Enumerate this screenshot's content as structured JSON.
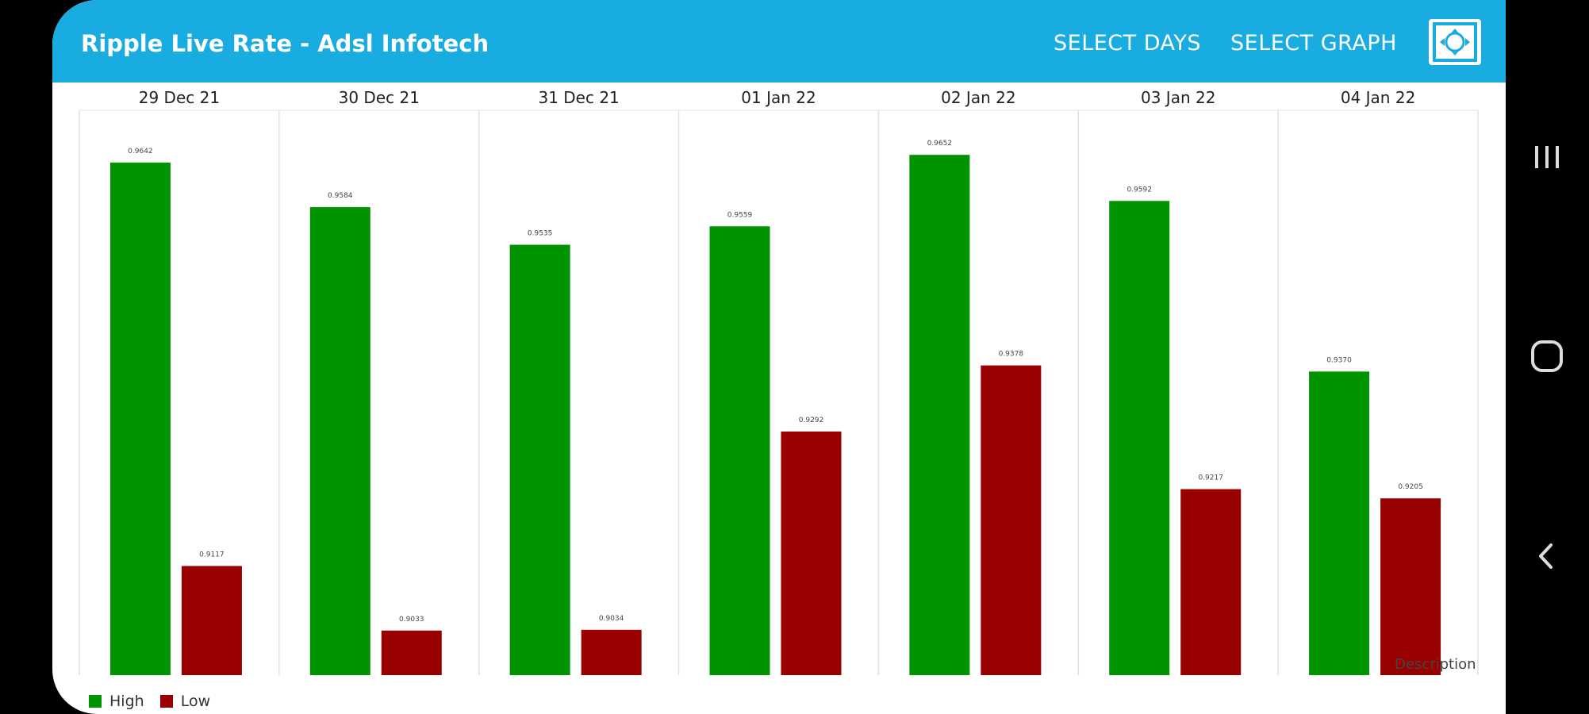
{
  "appbar": {
    "title": "Ripple Live Rate - Adsl Infotech",
    "select_days_label": "SELECT DAYS",
    "select_graph_label": "SELECT GRAPH",
    "fullscreen_icon": "fullscreen-icon",
    "background_color": "#19ace0"
  },
  "chart_data": {
    "type": "bar",
    "categories": [
      "29 Dec 21",
      "30 Dec 21",
      "31 Dec 21",
      "01 Jan 22",
      "02 Jan 22",
      "03 Jan 22",
      "04 Jan 22"
    ],
    "series": [
      {
        "name": "High",
        "color": "#009400",
        "values": [
          0.9642,
          0.9584,
          0.9535,
          0.9559,
          0.9652,
          0.9592,
          0.937
        ]
      },
      {
        "name": "Low",
        "color": "#990000",
        "values": [
          0.9117,
          0.9033,
          0.9034,
          0.9292,
          0.9378,
          0.9217,
          0.9205
        ]
      }
    ],
    "value_labels": {
      "High": [
        "0.9642",
        "0.9584",
        "0.9535",
        "0.9559",
        "0.9652",
        "0.9592",
        "0.9370"
      ],
      "Low": [
        "0.9117",
        "0.9033",
        "0.9034",
        "0.9292",
        "0.9378",
        "0.9217",
        "0.9205"
      ]
    },
    "ylim": [
      0.8975,
      0.971
    ],
    "description": "Description",
    "legend_position": "bottom-left",
    "grid": "vertical"
  },
  "navbar": {
    "recents_icon": "recents-icon",
    "home_icon": "home-icon",
    "back_icon": "back-icon"
  }
}
